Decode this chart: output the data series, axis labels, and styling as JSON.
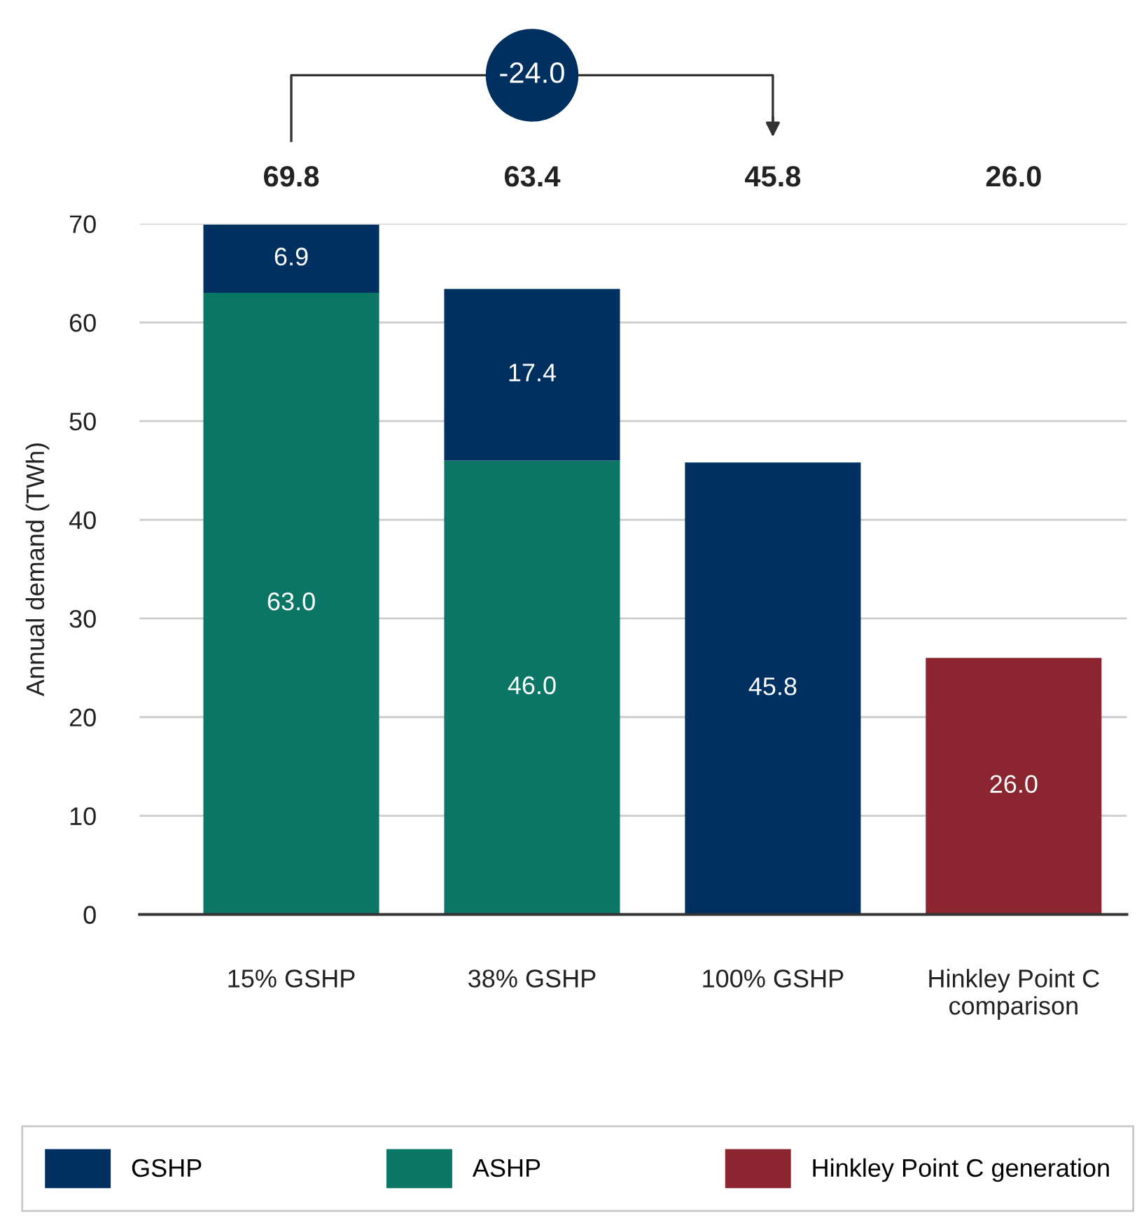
{
  "chart_data": {
    "type": "bar",
    "stacked": true,
    "ylabel": "Annual demand (TWh)",
    "categories": [
      "15% GSHP",
      "38% GSHP",
      "100% GSHP",
      "Hinkley Point C\ncomparison"
    ],
    "series": [
      {
        "name": "GSHP",
        "color": "#003060",
        "values": [
          null,
          null,
          45.8,
          null
        ],
        "value_labels": [
          null,
          null,
          "45.8",
          null
        ]
      },
      {
        "name": "ASHP",
        "color": "#0b7566",
        "values": [
          63.0,
          46.0,
          null,
          null
        ],
        "value_labels": [
          "63.0",
          "46.0",
          null,
          null
        ]
      },
      {
        "name": "Hinkley Point C generation",
        "color": "#8b2530",
        "values": [
          null,
          null,
          null,
          26.0
        ],
        "value_labels": [
          null,
          null,
          null,
          "26.0"
        ]
      },
      {
        "name": null,
        "color": "#003060",
        "values": [
          6.9,
          17.4,
          null,
          null
        ],
        "value_labels": [
          "6.9",
          "17.4",
          null,
          null
        ]
      }
    ],
    "annotations": [
      "-24.0",
      "69.8",
      "63.4",
      "45.8",
      "26.0"
    ],
    "ylim": [
      0,
      70
    ],
    "yticks": [
      0,
      10,
      20,
      30,
      40,
      50,
      60,
      70
    ],
    "grid": "y",
    "legend": "bottom"
  }
}
